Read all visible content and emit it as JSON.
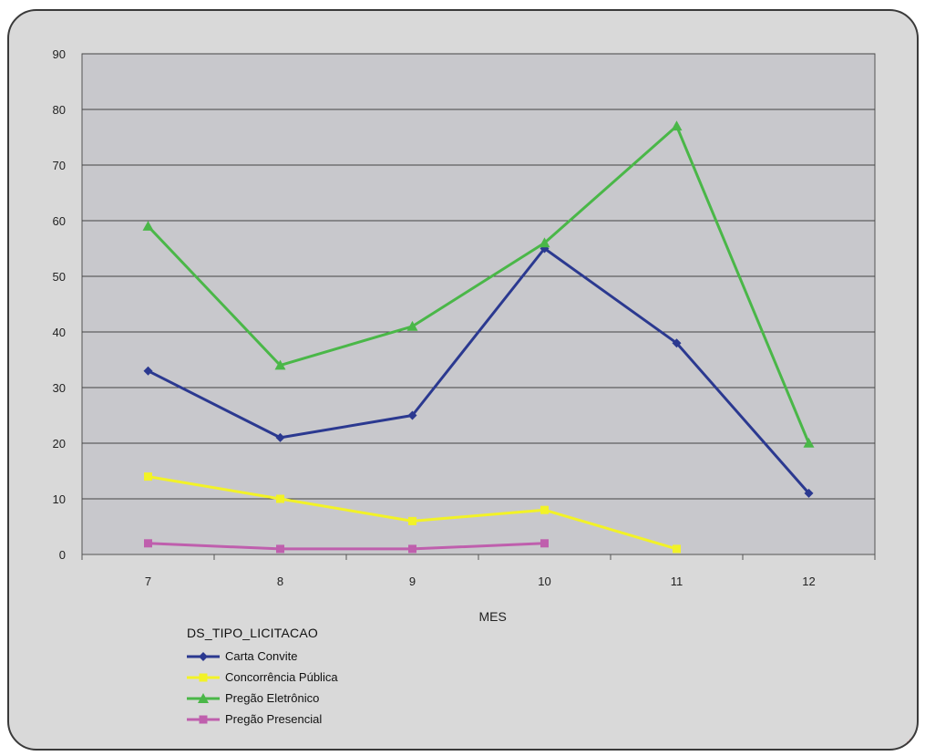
{
  "chart_data": {
    "type": "line",
    "xlabel": "MES",
    "ylabel": "",
    "categories": [
      "7",
      "8",
      "9",
      "10",
      "11",
      "12"
    ],
    "ylim": [
      0,
      90
    ],
    "yticks": [
      "0",
      "10",
      "20",
      "30",
      "40",
      "50",
      "60",
      "70",
      "80",
      "90"
    ],
    "grid": true,
    "legend_placement": "bottom-left",
    "legend_title": "DS_TIPO_LICITACAO",
    "series": [
      {
        "name": "Carta Convite",
        "color": "#2b3990",
        "marker": "diamond",
        "values": [
          33,
          21,
          25,
          55,
          38,
          11
        ]
      },
      {
        "name": "Concorrência Pública",
        "color": "#f2f227",
        "marker": "square",
        "values": [
          14,
          10,
          6,
          8,
          1,
          null
        ]
      },
      {
        "name": "Pregão Eletrônico",
        "color": "#4ab748",
        "marker": "triangle",
        "values": [
          59,
          34,
          41,
          56,
          77,
          20
        ]
      },
      {
        "name": "Pregão Presencial",
        "color": "#bf5fad",
        "marker": "square",
        "values": [
          2,
          1,
          1,
          2,
          null,
          null
        ]
      }
    ],
    "plot_background": "#c8c8cc",
    "gridline_color": "#444444"
  }
}
